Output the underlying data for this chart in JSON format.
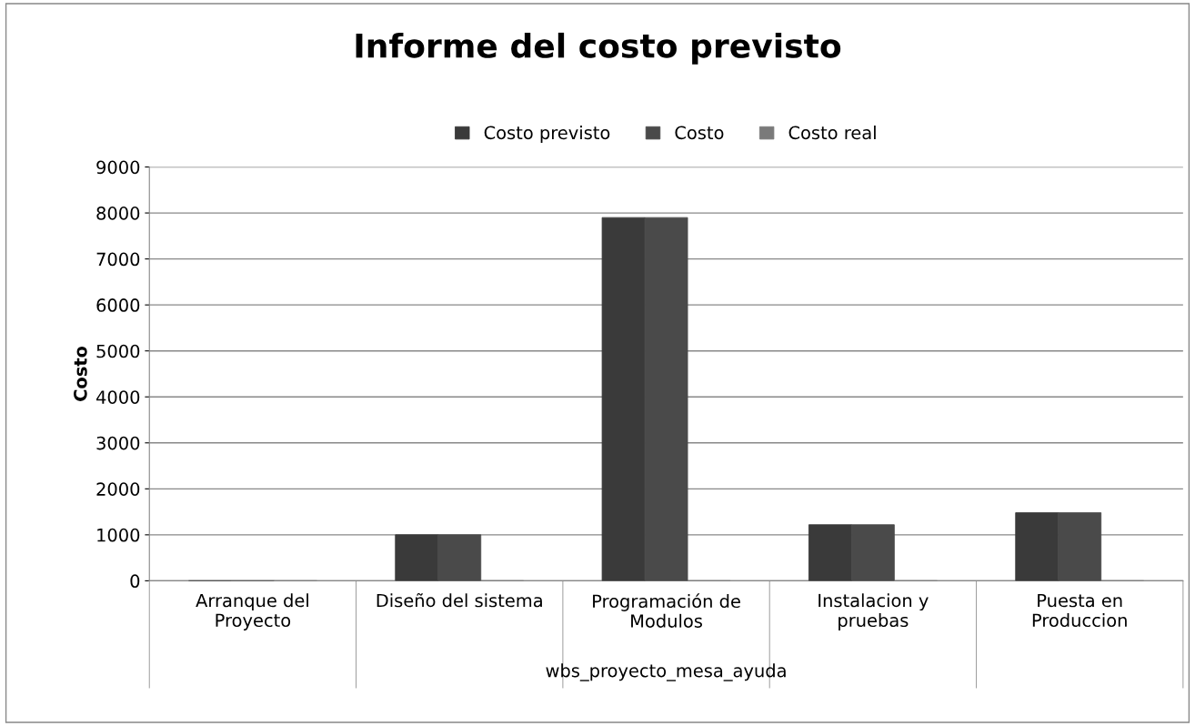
{
  "chart_data": {
    "type": "bar",
    "title": "Informe del costo previsto",
    "ylabel": "Costo",
    "xlabel": "wbs_proyecto_mesa_ayuda",
    "categories": [
      "Arranque del\nProyecto",
      "Diseño del sistema",
      "Programación de\nModulos",
      "Instalacion y\npruebas",
      "Puesta en\nProduccion"
    ],
    "series": [
      {
        "name": "Costo previsto",
        "color": "#3a3a3a",
        "values": [
          0,
          1000,
          7900,
          1220,
          1480
        ]
      },
      {
        "name": "Costo",
        "color": "#4a4a4a",
        "values": [
          0,
          1000,
          7900,
          1220,
          1480
        ]
      },
      {
        "name": "Costo real",
        "color": "#7a7a7a",
        "values": [
          0,
          0,
          0,
          0,
          0
        ]
      }
    ],
    "ylim": [
      0,
      9000
    ],
    "yticks": [
      0,
      1000,
      2000,
      3000,
      4000,
      5000,
      6000,
      7000,
      8000,
      9000
    ],
    "grid": "y",
    "legend": "top"
  }
}
